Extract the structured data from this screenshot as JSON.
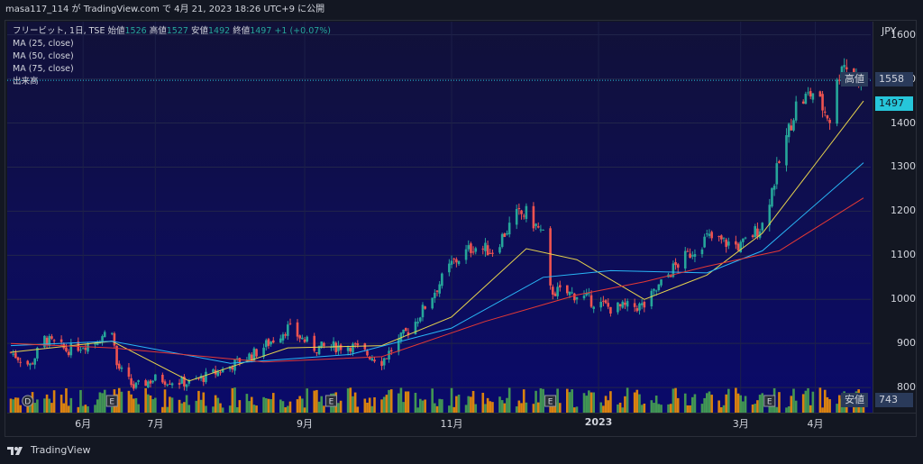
{
  "header": {
    "text": "masa117_114 が TradingView.com で 4月 21, 2023 18:26 UTC+9 に公開"
  },
  "legend": {
    "symbol": "フリービット, 1日, TSE",
    "open_label": "始値",
    "open": "1526",
    "high_label": "高値",
    "high": "1527",
    "low_label": "安値",
    "low": "1492",
    "close_label": "終値",
    "close": "1497",
    "change": "+1 (+0.07%)",
    "ma25": "MA (25, close)",
    "ma50": "MA (50, close)",
    "ma75": "MA (75, close)",
    "volume": "出来高"
  },
  "price_axis": {
    "currency": "JPY",
    "high_tag_label": "高値",
    "high_tag_value": "1558",
    "last_price": "1497",
    "low_tag_label": "安値",
    "low_tag_value": "743"
  },
  "footer": {
    "brand": "TradingView"
  },
  "colors": {
    "up": "#26a69a",
    "down": "#ef5350",
    "ma25": "#e8d44d",
    "ma50": "#29b6f6",
    "ma75": "#e53935",
    "vol_up": "#4caf50",
    "vol_down": "#ff9800",
    "last_price_tag": "#26c6da"
  },
  "chart_data": {
    "type": "candlestick",
    "ylim": [
      743,
      1630
    ],
    "y_ticks": [
      800,
      900,
      1000,
      1100,
      1200,
      1300,
      1400,
      1500,
      1600
    ],
    "x_ticks": [
      {
        "label": "6月",
        "date": "2022-06-01"
      },
      {
        "label": "7月",
        "date": "2022-07-01"
      },
      {
        "label": "9月",
        "date": "2022-09-01"
      },
      {
        "label": "11月",
        "date": "2022-11-01"
      },
      {
        "label": "2023",
        "date": "2023-01-01"
      },
      {
        "label": "3月",
        "date": "2023-03-01"
      },
      {
        "label": "4月",
        "date": "2023-04-01"
      }
    ],
    "date_range": [
      "2022-05-02",
      "2023-04-21"
    ],
    "event_markers": [
      {
        "label": "D",
        "date": "2022-05-09"
      },
      {
        "label": "E",
        "date": "2022-06-13"
      },
      {
        "label": "E",
        "date": "2022-09-12"
      },
      {
        "label": "E",
        "date": "2022-12-12"
      },
      {
        "label": "E",
        "date": "2023-03-13"
      }
    ],
    "price_path": [
      {
        "date": "2022-05-02",
        "close": 880
      },
      {
        "date": "2022-05-10",
        "close": 850
      },
      {
        "date": "2022-05-16",
        "close": 910
      },
      {
        "date": "2022-05-25",
        "close": 885
      },
      {
        "date": "2022-06-06",
        "close": 905
      },
      {
        "date": "2022-06-13",
        "close": 935
      },
      {
        "date": "2022-06-15",
        "close": 850
      },
      {
        "date": "2022-06-22",
        "close": 800
      },
      {
        "date": "2022-07-01",
        "close": 820
      },
      {
        "date": "2022-07-15",
        "close": 810
      },
      {
        "date": "2022-07-29",
        "close": 840
      },
      {
        "date": "2022-08-12",
        "close": 880
      },
      {
        "date": "2022-08-25",
        "close": 935
      },
      {
        "date": "2022-09-05",
        "close": 890
      },
      {
        "date": "2022-09-20",
        "close": 895
      },
      {
        "date": "2022-10-03",
        "close": 860
      },
      {
        "date": "2022-10-17",
        "close": 950
      },
      {
        "date": "2022-11-01",
        "close": 1080
      },
      {
        "date": "2022-11-10",
        "close": 1120
      },
      {
        "date": "2022-11-18",
        "close": 1110
      },
      {
        "date": "2022-11-28",
        "close": 1190
      },
      {
        "date": "2022-12-02",
        "close": 1195
      },
      {
        "date": "2022-12-09",
        "close": 1145
      },
      {
        "date": "2022-12-12",
        "close": 1020
      },
      {
        "date": "2022-12-23",
        "close": 1010
      },
      {
        "date": "2023-01-06",
        "close": 980
      },
      {
        "date": "2023-01-20",
        "close": 985
      },
      {
        "date": "2023-02-01",
        "close": 1070
      },
      {
        "date": "2023-02-15",
        "close": 1140
      },
      {
        "date": "2023-03-01",
        "close": 1120
      },
      {
        "date": "2023-03-10",
        "close": 1170
      },
      {
        "date": "2023-03-17",
        "close": 1310
      },
      {
        "date": "2023-03-24",
        "close": 1440
      },
      {
        "date": "2023-03-31",
        "close": 1470
      },
      {
        "date": "2023-04-07",
        "close": 1410
      },
      {
        "date": "2023-04-12",
        "close": 1540
      },
      {
        "date": "2023-04-17",
        "close": 1510
      },
      {
        "date": "2023-04-21",
        "close": 1497
      }
    ],
    "series": [
      {
        "name": "MA (25, close)",
        "values": [
          {
            "date": "2022-05-02",
            "v": 880
          },
          {
            "date": "2022-06-13",
            "v": 905
          },
          {
            "date": "2022-07-15",
            "v": 815
          },
          {
            "date": "2022-08-25",
            "v": 890
          },
          {
            "date": "2022-10-03",
            "v": 895
          },
          {
            "date": "2022-11-01",
            "v": 960
          },
          {
            "date": "2022-12-02",
            "v": 1115
          },
          {
            "date": "2022-12-23",
            "v": 1090
          },
          {
            "date": "2023-01-20",
            "v": 1000
          },
          {
            "date": "2023-02-15",
            "v": 1055
          },
          {
            "date": "2023-03-10",
            "v": 1150
          },
          {
            "date": "2023-03-31",
            "v": 1300
          },
          {
            "date": "2023-04-21",
            "v": 1450
          }
        ]
      },
      {
        "name": "MA (50, close)",
        "values": [
          {
            "date": "2022-05-02",
            "v": 895
          },
          {
            "date": "2022-06-13",
            "v": 905
          },
          {
            "date": "2022-08-01",
            "v": 855
          },
          {
            "date": "2022-09-20",
            "v": 875
          },
          {
            "date": "2022-11-01",
            "v": 935
          },
          {
            "date": "2022-12-09",
            "v": 1050
          },
          {
            "date": "2023-01-06",
            "v": 1065
          },
          {
            "date": "2023-02-15",
            "v": 1060
          },
          {
            "date": "2023-03-10",
            "v": 1110
          },
          {
            "date": "2023-04-21",
            "v": 1310
          }
        ]
      },
      {
        "name": "MA (75, close)",
        "values": [
          {
            "date": "2022-05-02",
            "v": 900
          },
          {
            "date": "2022-06-13",
            "v": 890
          },
          {
            "date": "2022-08-15",
            "v": 858
          },
          {
            "date": "2022-10-03",
            "v": 870
          },
          {
            "date": "2022-11-15",
            "v": 950
          },
          {
            "date": "2022-12-23",
            "v": 1010
          },
          {
            "date": "2023-01-20",
            "v": 1040
          },
          {
            "date": "2023-02-15",
            "v": 1075
          },
          {
            "date": "2023-03-17",
            "v": 1110
          },
          {
            "date": "2023-04-21",
            "v": 1230
          }
        ]
      }
    ],
    "grid": true
  }
}
